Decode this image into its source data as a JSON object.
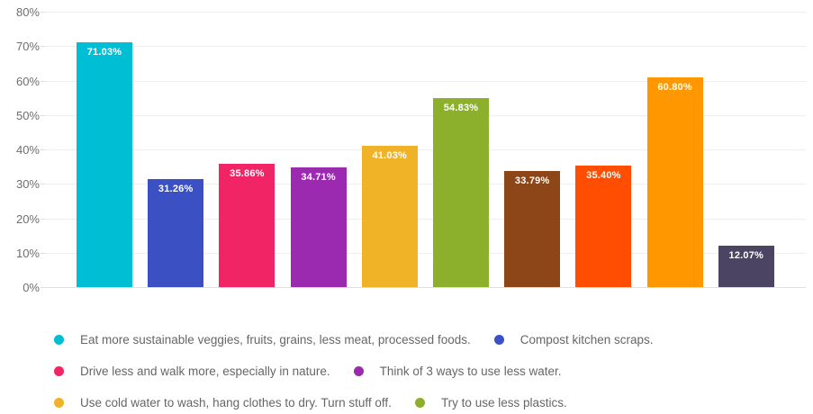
{
  "chart_data": {
    "type": "bar",
    "title": "",
    "xlabel": "",
    "ylabel": "",
    "ylim": [
      0,
      80
    ],
    "grid": true,
    "legend_position": "bottom",
    "y_ticks": [
      "0%",
      "10%",
      "20%",
      "30%",
      "40%",
      "50%",
      "60%",
      "70%",
      "80%"
    ],
    "values": [
      71.03,
      31.26,
      35.86,
      34.71,
      41.03,
      54.83,
      33.79,
      35.4,
      60.8,
      12.07
    ],
    "value_labels": [
      "71.03%",
      "31.26%",
      "35.86%",
      "34.71%",
      "41.03%",
      "54.83%",
      "33.79%",
      "35.40%",
      "60.80%",
      "12.07%"
    ],
    "bar_colors": [
      "#00bfd5",
      "#3b51c3",
      "#f12566",
      "#9c2ab1",
      "#f0b227",
      "#8caf2c",
      "#8c4617",
      "#ff4d02",
      "#ff9800",
      "#4b4563"
    ],
    "label_color": "#ffffff",
    "gridline_color": "#eeeeee",
    "axis_line_color": "#e0e0e0",
    "tick_label_color": "#6e6e6e",
    "legend": [
      {
        "label": "Eat more sustainable veggies, fruits, grains, less meat, processed foods.",
        "color": "#00bfd5"
      },
      {
        "label": "Compost kitchen scraps.",
        "color": "#3b51c3"
      },
      {
        "label": "Drive less and walk more, especially in nature.",
        "color": "#f12566"
      },
      {
        "label": "Think of 3 ways to use less water.",
        "color": "#9c2ab1"
      },
      {
        "label": "Use cold water to wash, hang clothes to dry. Turn stuff off.",
        "color": "#f0b227"
      },
      {
        "label": "Try to use less plastics.",
        "color": "#8caf2c"
      }
    ],
    "legend_rows": [
      [
        0,
        1
      ],
      [
        2,
        3
      ],
      [
        4,
        5
      ]
    ]
  }
}
